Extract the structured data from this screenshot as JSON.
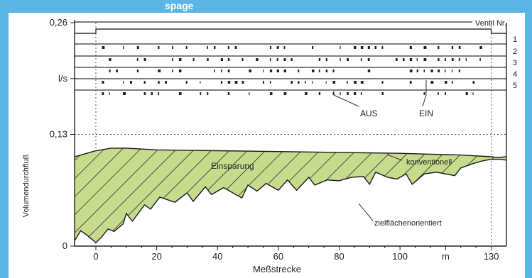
{
  "header": {
    "fragment": "spage"
  },
  "chart_data": {
    "type": "area",
    "ylabel": "Volumendurchfluß",
    "xlabel": "Meßstrecke",
    "y_ticks": [
      "0,26",
      "l/s",
      "0,13",
      "0"
    ],
    "y_tick_values": [
      0.26,
      0.195,
      0.13,
      0
    ],
    "x_ticks": [
      "0",
      "20",
      "40",
      "60",
      "80",
      "100",
      "m",
      "130"
    ],
    "x_tick_values": [
      0,
      20,
      40,
      60,
      80,
      100,
      115,
      130
    ],
    "xlim": [
      -7,
      135
    ],
    "ylim": [
      0,
      0.26
    ],
    "annotations": {
      "ventil": "Ventil Nr.",
      "valve_numbers": [
        "1",
        "2",
        "3",
        "4",
        "5"
      ],
      "aus": "AUS",
      "ein": "EIN",
      "einsparung": "Einsparung",
      "konventionell": "konventionell",
      "zielflaechenorientiert": "zielflächenorientiert"
    },
    "colors": {
      "saving_fill": "#c6db8c",
      "hatch": "#2a2a2a",
      "background": "#5ab6e6"
    },
    "series": [
      {
        "name": "konventionell",
        "x": [
          -7,
          -4,
          0,
          5,
          10,
          20,
          40,
          60,
          80,
          100,
          110,
          120,
          125,
          130,
          132,
          135
        ],
        "y": [
          0.104,
          0.107,
          0.111,
          0.114,
          0.114,
          0.112,
          0.111,
          0.11,
          0.109,
          0.108,
          0.107,
          0.106,
          0.105,
          0.104,
          0.103,
          0.104
        ]
      },
      {
        "name": "zielflächenorientiert",
        "x": [
          -7,
          -5,
          -3,
          0,
          2,
          4,
          6,
          9,
          10,
          12,
          16,
          18,
          21,
          26,
          30,
          32,
          36,
          38,
          42,
          48,
          50,
          53,
          56,
          60,
          63,
          66,
          70,
          72,
          76,
          80,
          84,
          88,
          90,
          92,
          96,
          99,
          102,
          104,
          108,
          112,
          118,
          120,
          124,
          127,
          130,
          133,
          135
        ],
        "y": [
          0.006,
          0.018,
          0.013,
          0.004,
          0.011,
          0.02,
          0.017,
          0.026,
          0.038,
          0.029,
          0.048,
          0.043,
          0.057,
          0.051,
          0.062,
          0.052,
          0.069,
          0.06,
          0.068,
          0.056,
          0.071,
          0.064,
          0.073,
          0.065,
          0.077,
          0.065,
          0.08,
          0.071,
          0.077,
          0.076,
          0.08,
          0.081,
          0.072,
          0.086,
          0.08,
          0.078,
          0.084,
          0.072,
          0.084,
          0.086,
          0.082,
          0.091,
          0.096,
          0.099,
          0.101,
          0.101,
          0.1
        ]
      }
    ],
    "valve_states": {
      "aus_level": 0.22,
      "ein_level": 0.235,
      "main_step_x": [
        -7,
        0,
        130,
        135
      ]
    }
  }
}
